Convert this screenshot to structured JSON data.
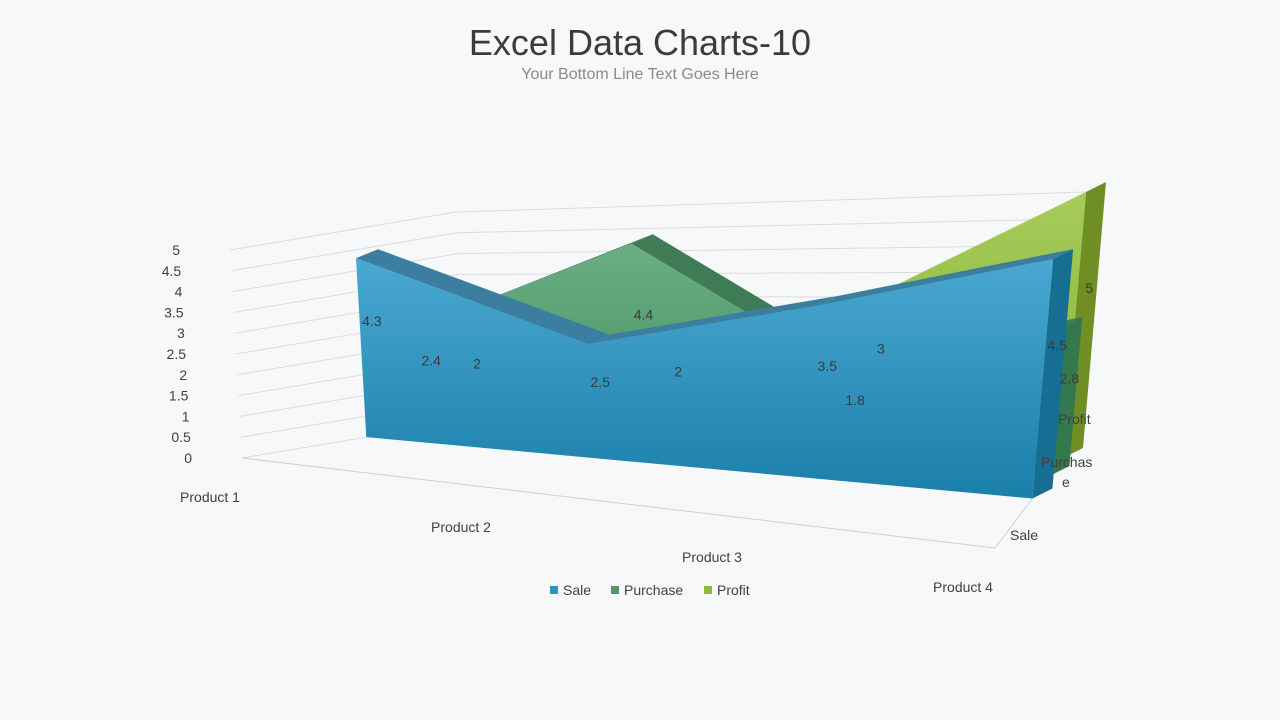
{
  "page": {
    "title": "Excel Data Charts-10",
    "subtitle": "Your Bottom Line Text Goes Here"
  },
  "chart_data": {
    "type": "area",
    "subtype": "3d-area",
    "categories": [
      "Product 1",
      "Product 2",
      "Product 3",
      "Product 4"
    ],
    "series": [
      {
        "name": "Sale",
        "values": [
          4.3,
          2.5,
          3.5,
          4.5
        ],
        "color": "#2b93c2"
      },
      {
        "name": "Purchase",
        "values": [
          2.4,
          4.4,
          1.8,
          2.8
        ],
        "color": "#4f9a6b"
      },
      {
        "name": "Profit",
        "values": [
          2,
          2,
          3,
          5
        ],
        "color": "#8fba3c"
      }
    ],
    "y_ticks": [
      "0",
      "0.5",
      "1",
      "1.5",
      "2",
      "2.5",
      "3",
      "3.5",
      "4",
      "4.5",
      "5"
    ],
    "ylim": [
      0,
      5
    ],
    "depth_labels": [
      "Sale",
      "Purchas\ne",
      "Profit"
    ],
    "legend_position": "bottom",
    "grid": true
  }
}
